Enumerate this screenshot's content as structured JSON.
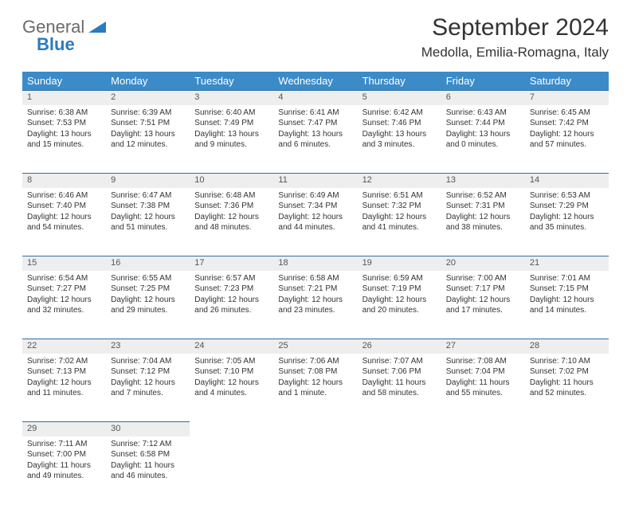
{
  "logo": {
    "line1": "General",
    "line2": "Blue"
  },
  "title": "September 2024",
  "location": "Medolla, Emilia-Romagna, Italy",
  "colors": {
    "header_bg": "#3b8bc9",
    "daynum_bg": "#eeeeee",
    "rule": "#2f6fa3",
    "logo_gray": "#6a6a6a",
    "logo_blue": "#2b7bbf"
  },
  "weekdays": [
    "Sunday",
    "Monday",
    "Tuesday",
    "Wednesday",
    "Thursday",
    "Friday",
    "Saturday"
  ],
  "weeks": [
    [
      {
        "num": "1",
        "sunrise": "Sunrise: 6:38 AM",
        "sunset": "Sunset: 7:53 PM",
        "daylight": "Daylight: 13 hours and 15 minutes."
      },
      {
        "num": "2",
        "sunrise": "Sunrise: 6:39 AM",
        "sunset": "Sunset: 7:51 PM",
        "daylight": "Daylight: 13 hours and 12 minutes."
      },
      {
        "num": "3",
        "sunrise": "Sunrise: 6:40 AM",
        "sunset": "Sunset: 7:49 PM",
        "daylight": "Daylight: 13 hours and 9 minutes."
      },
      {
        "num": "4",
        "sunrise": "Sunrise: 6:41 AM",
        "sunset": "Sunset: 7:47 PM",
        "daylight": "Daylight: 13 hours and 6 minutes."
      },
      {
        "num": "5",
        "sunrise": "Sunrise: 6:42 AM",
        "sunset": "Sunset: 7:46 PM",
        "daylight": "Daylight: 13 hours and 3 minutes."
      },
      {
        "num": "6",
        "sunrise": "Sunrise: 6:43 AM",
        "sunset": "Sunset: 7:44 PM",
        "daylight": "Daylight: 13 hours and 0 minutes."
      },
      {
        "num": "7",
        "sunrise": "Sunrise: 6:45 AM",
        "sunset": "Sunset: 7:42 PM",
        "daylight": "Daylight: 12 hours and 57 minutes."
      }
    ],
    [
      {
        "num": "8",
        "sunrise": "Sunrise: 6:46 AM",
        "sunset": "Sunset: 7:40 PM",
        "daylight": "Daylight: 12 hours and 54 minutes."
      },
      {
        "num": "9",
        "sunrise": "Sunrise: 6:47 AM",
        "sunset": "Sunset: 7:38 PM",
        "daylight": "Daylight: 12 hours and 51 minutes."
      },
      {
        "num": "10",
        "sunrise": "Sunrise: 6:48 AM",
        "sunset": "Sunset: 7:36 PM",
        "daylight": "Daylight: 12 hours and 48 minutes."
      },
      {
        "num": "11",
        "sunrise": "Sunrise: 6:49 AM",
        "sunset": "Sunset: 7:34 PM",
        "daylight": "Daylight: 12 hours and 44 minutes."
      },
      {
        "num": "12",
        "sunrise": "Sunrise: 6:51 AM",
        "sunset": "Sunset: 7:32 PM",
        "daylight": "Daylight: 12 hours and 41 minutes."
      },
      {
        "num": "13",
        "sunrise": "Sunrise: 6:52 AM",
        "sunset": "Sunset: 7:31 PM",
        "daylight": "Daylight: 12 hours and 38 minutes."
      },
      {
        "num": "14",
        "sunrise": "Sunrise: 6:53 AM",
        "sunset": "Sunset: 7:29 PM",
        "daylight": "Daylight: 12 hours and 35 minutes."
      }
    ],
    [
      {
        "num": "15",
        "sunrise": "Sunrise: 6:54 AM",
        "sunset": "Sunset: 7:27 PM",
        "daylight": "Daylight: 12 hours and 32 minutes."
      },
      {
        "num": "16",
        "sunrise": "Sunrise: 6:55 AM",
        "sunset": "Sunset: 7:25 PM",
        "daylight": "Daylight: 12 hours and 29 minutes."
      },
      {
        "num": "17",
        "sunrise": "Sunrise: 6:57 AM",
        "sunset": "Sunset: 7:23 PM",
        "daylight": "Daylight: 12 hours and 26 minutes."
      },
      {
        "num": "18",
        "sunrise": "Sunrise: 6:58 AM",
        "sunset": "Sunset: 7:21 PM",
        "daylight": "Daylight: 12 hours and 23 minutes."
      },
      {
        "num": "19",
        "sunrise": "Sunrise: 6:59 AM",
        "sunset": "Sunset: 7:19 PM",
        "daylight": "Daylight: 12 hours and 20 minutes."
      },
      {
        "num": "20",
        "sunrise": "Sunrise: 7:00 AM",
        "sunset": "Sunset: 7:17 PM",
        "daylight": "Daylight: 12 hours and 17 minutes."
      },
      {
        "num": "21",
        "sunrise": "Sunrise: 7:01 AM",
        "sunset": "Sunset: 7:15 PM",
        "daylight": "Daylight: 12 hours and 14 minutes."
      }
    ],
    [
      {
        "num": "22",
        "sunrise": "Sunrise: 7:02 AM",
        "sunset": "Sunset: 7:13 PM",
        "daylight": "Daylight: 12 hours and 11 minutes."
      },
      {
        "num": "23",
        "sunrise": "Sunrise: 7:04 AM",
        "sunset": "Sunset: 7:12 PM",
        "daylight": "Daylight: 12 hours and 7 minutes."
      },
      {
        "num": "24",
        "sunrise": "Sunrise: 7:05 AM",
        "sunset": "Sunset: 7:10 PM",
        "daylight": "Daylight: 12 hours and 4 minutes."
      },
      {
        "num": "25",
        "sunrise": "Sunrise: 7:06 AM",
        "sunset": "Sunset: 7:08 PM",
        "daylight": "Daylight: 12 hours and 1 minute."
      },
      {
        "num": "26",
        "sunrise": "Sunrise: 7:07 AM",
        "sunset": "Sunset: 7:06 PM",
        "daylight": "Daylight: 11 hours and 58 minutes."
      },
      {
        "num": "27",
        "sunrise": "Sunrise: 7:08 AM",
        "sunset": "Sunset: 7:04 PM",
        "daylight": "Daylight: 11 hours and 55 minutes."
      },
      {
        "num": "28",
        "sunrise": "Sunrise: 7:10 AM",
        "sunset": "Sunset: 7:02 PM",
        "daylight": "Daylight: 11 hours and 52 minutes."
      }
    ],
    [
      {
        "num": "29",
        "sunrise": "Sunrise: 7:11 AM",
        "sunset": "Sunset: 7:00 PM",
        "daylight": "Daylight: 11 hours and 49 minutes."
      },
      {
        "num": "30",
        "sunrise": "Sunrise: 7:12 AM",
        "sunset": "Sunset: 6:58 PM",
        "daylight": "Daylight: 11 hours and 46 minutes."
      },
      null,
      null,
      null,
      null,
      null
    ]
  ]
}
